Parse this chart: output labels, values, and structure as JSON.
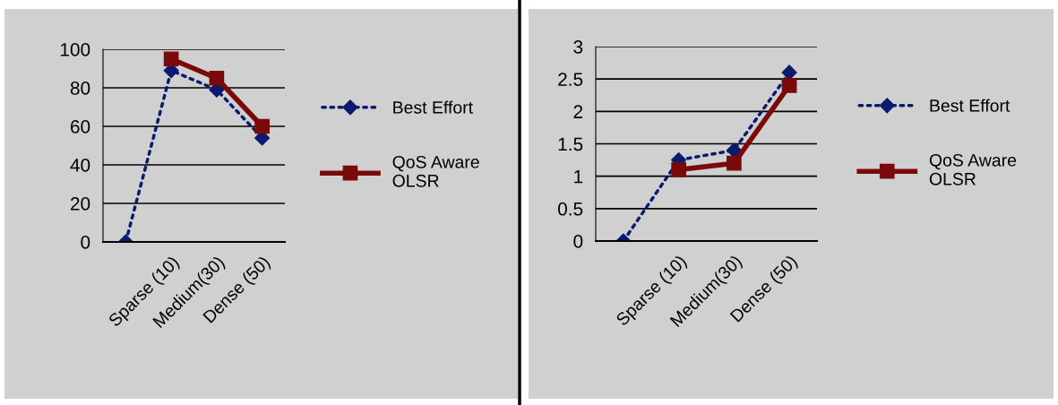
{
  "chart_data": [
    {
      "type": "line",
      "categories": [
        null,
        "Sparse (10)",
        "Medium(30)",
        "Dense (50)"
      ],
      "ylim": [
        0,
        100
      ],
      "yticks": [
        0,
        20,
        40,
        60,
        80,
        100
      ],
      "grid": "y",
      "legend": "right",
      "series": [
        {
          "name": "Best Effort",
          "color": "#0a1a6e",
          "values": [
            0,
            89,
            79,
            54
          ],
          "marker": "diamond",
          "line_style": "dotted"
        },
        {
          "name": "QoS Aware OLSR",
          "color": "#7a0a0a",
          "values": [
            null,
            95,
            85,
            60
          ],
          "marker": "square",
          "line_style": "solid"
        }
      ]
    },
    {
      "type": "line",
      "categories": [
        null,
        "Sparse (10)",
        "Medium(30)",
        "Dense (50)"
      ],
      "ylim": [
        0,
        3
      ],
      "yticks": [
        0,
        0.5,
        1,
        1.5,
        2,
        2.5,
        3
      ],
      "grid": "y",
      "legend": "right",
      "series": [
        {
          "name": "Best Effort",
          "color": "#0a1a6e",
          "values": [
            0,
            1.25,
            1.4,
            2.6
          ],
          "marker": "diamond",
          "line_style": "dotted"
        },
        {
          "name": "QoS Aware OLSR",
          "color": "#7a0a0a",
          "values": [
            null,
            1.1,
            1.2,
            2.4
          ],
          "marker": "square",
          "line_style": "solid"
        }
      ]
    }
  ]
}
